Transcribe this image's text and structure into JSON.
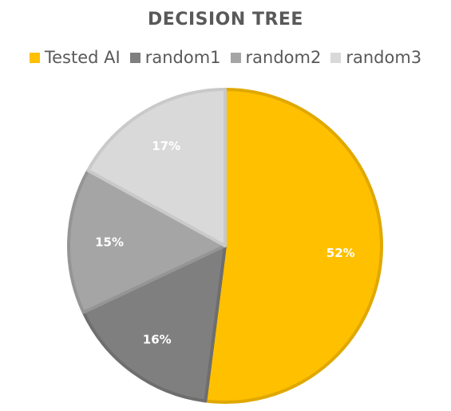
{
  "chart_data": {
    "type": "pie",
    "title": "DECISION TREE",
    "legend_position": "top",
    "categories": [
      "Tested AI",
      "random1",
      "random2",
      "random3"
    ],
    "values": [
      52,
      16,
      15,
      17
    ],
    "labels": [
      "52%",
      "16%",
      "15%",
      "17%"
    ],
    "colors": [
      "#FFC000",
      "#7F7F7F",
      "#A5A5A5",
      "#D9D9D9"
    ],
    "border_colors": [
      "#E0A800",
      "#6E6E6E",
      "#959595",
      "#C9C9C9"
    ]
  }
}
